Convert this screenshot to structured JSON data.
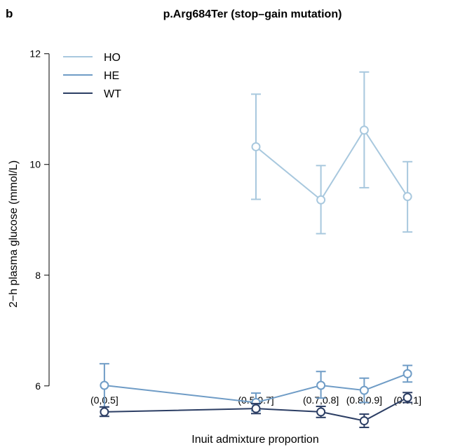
{
  "panel_label": "b",
  "chart_data": {
    "type": "line",
    "title": "p.Arg684Ter (stop–gain mutation)",
    "xlabel": "Inuit admixture proportion",
    "ylabel": "2−h plasma glucose (mmol/L)",
    "categories": [
      "(0,0.5]",
      "(0.5,0.7]",
      "(0.7,0.8]",
      "(0.8,0.9]",
      "(0.9,1]"
    ],
    "x_positions": [
      0.25,
      0.6,
      0.75,
      0.85,
      0.95
    ],
    "xlim": [
      0.2,
      1.0
    ],
    "ylim": [
      5.2,
      12.3
    ],
    "yticks": [
      6,
      8,
      10,
      12
    ],
    "legend_position": "top-left",
    "series": [
      {
        "name": "HO",
        "color": "#a8c8de",
        "values": [
          null,
          10.32,
          9.36,
          10.62,
          9.42
        ],
        "lower": [
          null,
          9.37,
          8.75,
          9.58,
          8.78
        ],
        "upper": [
          null,
          11.27,
          9.98,
          11.67,
          10.05
        ]
      },
      {
        "name": "HE",
        "color": "#6f9cc6",
        "values": [
          6.01,
          5.7,
          6.01,
          5.92,
          6.22
        ],
        "lower": [
          5.62,
          5.55,
          5.78,
          5.7,
          6.07
        ],
        "upper": [
          6.4,
          5.87,
          6.26,
          6.14,
          6.37
        ]
      },
      {
        "name": "WT",
        "color": "#2c3e64",
        "values": [
          5.53,
          5.59,
          5.53,
          5.37,
          5.79
        ],
        "lower": [
          5.45,
          5.5,
          5.43,
          5.25,
          5.7
        ],
        "upper": [
          5.62,
          5.68,
          5.63,
          5.49,
          5.88
        ]
      }
    ]
  }
}
